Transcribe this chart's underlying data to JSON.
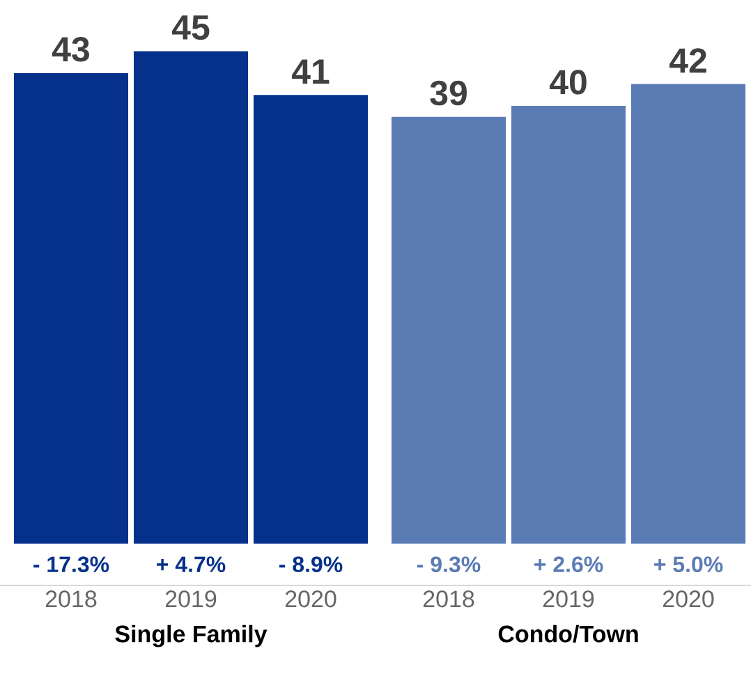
{
  "chart_data": [
    {
      "type": "bar",
      "xlabel": "Single Family",
      "categories": [
        "2018",
        "2019",
        "2020"
      ],
      "values": [
        43,
        45,
        41
      ],
      "color": "#06318a",
      "data_labels": true,
      "annotations": [
        {
          "text": "- 17.3%",
          "x": "2018",
          "y": 0
        },
        {
          "text": "+ 4.7%",
          "x": "2019",
          "y": 0
        },
        {
          "text": "- 8.9%",
          "x": "2020",
          "y": 0
        }
      ]
    },
    {
      "type": "bar",
      "xlabel": "Condo/Town",
      "categories": [
        "2018",
        "2019",
        "2020"
      ],
      "values": [
        39,
        40,
        42
      ],
      "color": "#5b7bb5",
      "data_labels": true,
      "annotations": [
        {
          "text": "- 9.3%",
          "x": "2018",
          "y": 0
        },
        {
          "text": "+ 2.6%",
          "x": "2019",
          "y": 0
        },
        {
          "text": "+ 5.0%",
          "x": "2020",
          "y": 0
        }
      ]
    }
  ]
}
